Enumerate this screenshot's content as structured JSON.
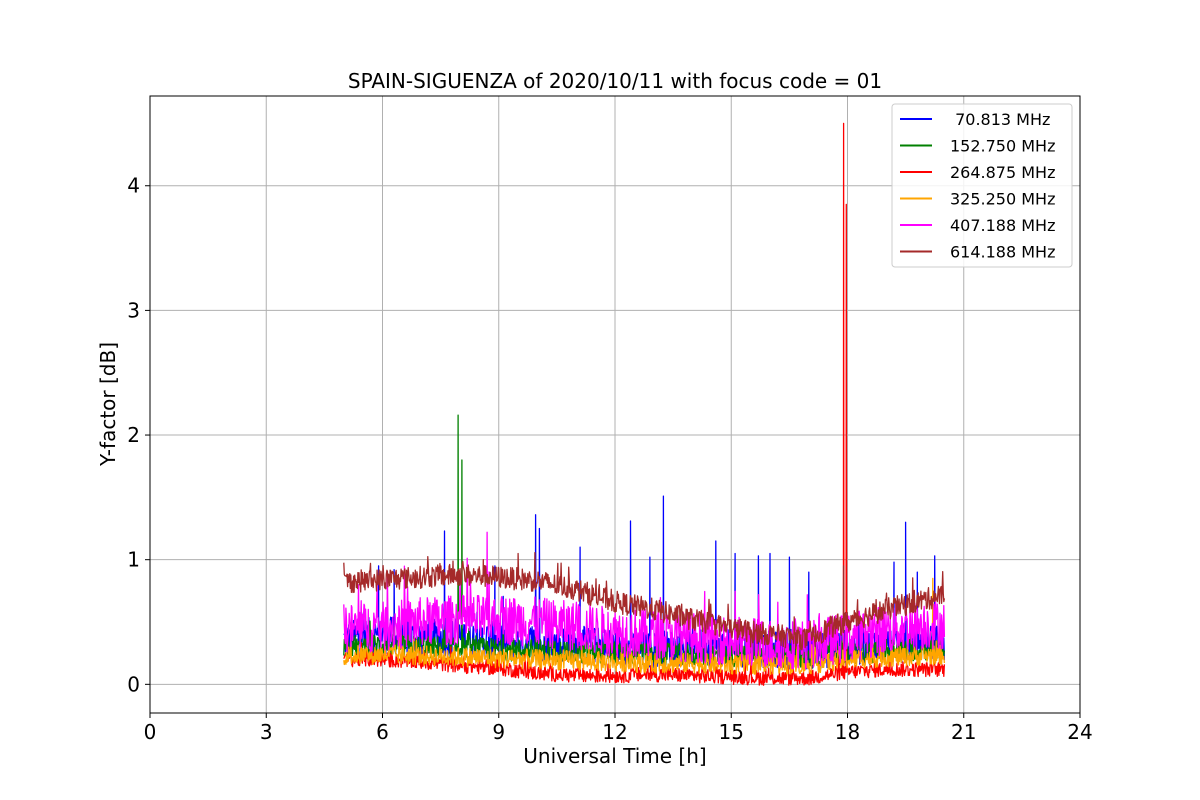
{
  "chart_data": {
    "type": "line",
    "title": "SPAIN-SIGUENZA of 2020/10/11 with focus code = 01",
    "xlabel": "Universal Time [h]",
    "ylabel": "Y-factor [dB]",
    "xlim": [
      0,
      24
    ],
    "ylim": [
      -0.23,
      4.72
    ],
    "xticks": [
      0,
      3,
      6,
      9,
      12,
      15,
      18,
      21,
      24
    ],
    "xtick_labels": [
      "0",
      "3",
      "6",
      "9",
      "12",
      "15",
      "18",
      "21",
      "24"
    ],
    "yticks": [
      0,
      1,
      2,
      3,
      4
    ],
    "ytick_labels": [
      "0",
      "1",
      "2",
      "3",
      "4"
    ],
    "grid": true,
    "legend_position": "top-right",
    "series": [
      {
        "name": " 70.813 MHz",
        "color": "#0000ff",
        "base": [
          [
            5.0,
            0.36
          ],
          [
            6.0,
            0.4
          ],
          [
            7.0,
            0.37
          ],
          [
            8.0,
            0.38
          ],
          [
            9.0,
            0.35
          ],
          [
            10.0,
            0.33
          ],
          [
            11.0,
            0.32
          ],
          [
            12.0,
            0.3
          ],
          [
            13.0,
            0.28
          ],
          [
            14.0,
            0.3
          ],
          [
            15.0,
            0.29
          ],
          [
            16.0,
            0.28
          ],
          [
            17.0,
            0.27
          ],
          [
            18.0,
            0.29
          ],
          [
            19.0,
            0.32
          ],
          [
            20.0,
            0.33
          ],
          [
            20.5,
            0.33
          ]
        ],
        "noise": 0.15,
        "peaks": [
          [
            5.9,
            0.95
          ],
          [
            6.3,
            0.92
          ],
          [
            7.6,
            1.23
          ],
          [
            8.9,
            0.95
          ],
          [
            9.95,
            1.36
          ],
          [
            10.05,
            1.25
          ],
          [
            11.1,
            1.1
          ],
          [
            12.4,
            1.31
          ],
          [
            12.9,
            1.02
          ],
          [
            13.25,
            1.51
          ],
          [
            14.6,
            1.15
          ],
          [
            15.1,
            1.05
          ],
          [
            15.7,
            1.03
          ],
          [
            16.0,
            1.05
          ],
          [
            16.5,
            1.02
          ],
          [
            17.0,
            0.9
          ],
          [
            19.2,
            0.98
          ],
          [
            19.5,
            1.3
          ],
          [
            19.8,
            0.9
          ],
          [
            20.25,
            1.03
          ]
        ]
      },
      {
        "name": "152.750 MHz",
        "color": "#008000",
        "base": [
          [
            5.0,
            0.3
          ],
          [
            6.0,
            0.32
          ],
          [
            7.0,
            0.3
          ],
          [
            8.0,
            0.29
          ],
          [
            9.0,
            0.28
          ],
          [
            10.0,
            0.27
          ],
          [
            11.0,
            0.26
          ],
          [
            12.0,
            0.25
          ],
          [
            13.0,
            0.24
          ],
          [
            14.0,
            0.24
          ],
          [
            15.0,
            0.23
          ],
          [
            16.0,
            0.23
          ],
          [
            17.0,
            0.22
          ],
          [
            18.0,
            0.25
          ],
          [
            19.0,
            0.27
          ],
          [
            20.0,
            0.28
          ],
          [
            20.5,
            0.29
          ]
        ],
        "noise": 0.09,
        "peaks": [
          [
            7.95,
            2.16
          ],
          [
            8.05,
            1.8
          ]
        ]
      },
      {
        "name": "264.875 MHz",
        "color": "#ff0000",
        "base": [
          [
            5.0,
            0.2
          ],
          [
            6.0,
            0.2
          ],
          [
            7.0,
            0.18
          ],
          [
            8.0,
            0.15
          ],
          [
            9.0,
            0.13
          ],
          [
            10.0,
            0.09
          ],
          [
            11.0,
            0.07
          ],
          [
            12.0,
            0.07
          ],
          [
            13.0,
            0.08
          ],
          [
            14.0,
            0.07
          ],
          [
            15.0,
            0.06
          ],
          [
            16.0,
            0.05
          ],
          [
            17.0,
            0.05
          ],
          [
            18.0,
            0.1
          ],
          [
            19.0,
            0.12
          ],
          [
            20.0,
            0.12
          ],
          [
            20.5,
            0.12
          ]
        ],
        "noise": 0.06,
        "peaks": [
          [
            17.9,
            4.5
          ],
          [
            17.97,
            3.85
          ]
        ]
      },
      {
        "name": "325.250 MHz",
        "color": "#ffa500",
        "base": [
          [
            5.0,
            0.23
          ],
          [
            6.0,
            0.24
          ],
          [
            7.0,
            0.23
          ],
          [
            8.0,
            0.22
          ],
          [
            9.0,
            0.21
          ],
          [
            10.0,
            0.2
          ],
          [
            11.0,
            0.19
          ],
          [
            12.0,
            0.18
          ],
          [
            13.0,
            0.17
          ],
          [
            14.0,
            0.17
          ],
          [
            15.0,
            0.16
          ],
          [
            16.0,
            0.16
          ],
          [
            17.0,
            0.16
          ],
          [
            18.0,
            0.2
          ],
          [
            19.0,
            0.22
          ],
          [
            20.0,
            0.23
          ],
          [
            20.5,
            0.24
          ]
        ],
        "noise": 0.08,
        "peaks": [
          [
            20.2,
            0.85
          ]
        ]
      },
      {
        "name": "407.188 MHz",
        "color": "#ff00ff",
        "base": [
          [
            5.0,
            0.45
          ],
          [
            6.0,
            0.46
          ],
          [
            7.0,
            0.5
          ],
          [
            8.0,
            0.52
          ],
          [
            9.0,
            0.52
          ],
          [
            10.0,
            0.5
          ],
          [
            11.0,
            0.46
          ],
          [
            12.0,
            0.42
          ],
          [
            13.0,
            0.4
          ],
          [
            14.0,
            0.38
          ],
          [
            15.0,
            0.35
          ],
          [
            16.0,
            0.33
          ],
          [
            17.0,
            0.32
          ],
          [
            18.0,
            0.38
          ],
          [
            19.0,
            0.44
          ],
          [
            20.0,
            0.48
          ],
          [
            20.5,
            0.48
          ]
        ],
        "noise": 0.2,
        "peaks": [
          [
            8.7,
            1.22
          ]
        ]
      },
      {
        "name": "614.188 MHz",
        "color": "#a52a2a",
        "base": [
          [
            5.0,
            0.82
          ],
          [
            6.0,
            0.84
          ],
          [
            7.0,
            0.86
          ],
          [
            8.0,
            0.88
          ],
          [
            9.0,
            0.86
          ],
          [
            10.0,
            0.83
          ],
          [
            11.0,
            0.76
          ],
          [
            12.0,
            0.66
          ],
          [
            13.0,
            0.6
          ],
          [
            14.0,
            0.52
          ],
          [
            15.0,
            0.45
          ],
          [
            16.0,
            0.4
          ],
          [
            17.0,
            0.36
          ],
          [
            17.5,
            0.45
          ],
          [
            18.0,
            0.5
          ],
          [
            19.0,
            0.6
          ],
          [
            20.0,
            0.68
          ],
          [
            20.5,
            0.72
          ]
        ],
        "noise": 0.09,
        "peaks": [
          [
            8.6,
            1.0
          ],
          [
            9.5,
            1.05
          ],
          [
            15.5,
            0.3
          ],
          [
            17.9,
            0.95
          ]
        ]
      }
    ]
  }
}
